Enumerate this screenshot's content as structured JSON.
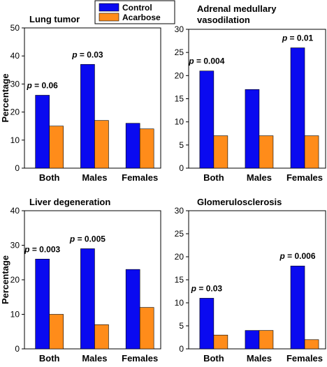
{
  "legend": {
    "entries": [
      {
        "name": "Control",
        "color": "#0a0af0"
      },
      {
        "name": "Acarbose",
        "color": "#ff8c1a"
      }
    ]
  },
  "chart_data": [
    {
      "type": "bar",
      "title": "Lung tumor",
      "ylabel": "Percentage",
      "categories": [
        "Both",
        "Males",
        "Females"
      ],
      "ylim": [
        0,
        50
      ],
      "yticks": [
        0,
        10,
        20,
        30,
        40,
        50
      ],
      "series": [
        {
          "name": "Control",
          "values": [
            26,
            37,
            16
          ]
        },
        {
          "name": "Acarbose",
          "values": [
            15,
            17,
            14
          ]
        }
      ],
      "annotations": [
        "p = 0.06",
        "p = 0.03",
        ""
      ]
    },
    {
      "type": "bar",
      "title": "Adrenal medullary vasodilation",
      "title_lines": [
        "Adrenal medullary",
        "vasodilation"
      ],
      "ylabel": "",
      "categories": [
        "Both",
        "Males",
        "Females"
      ],
      "ylim": [
        0,
        30
      ],
      "yticks": [
        0,
        5,
        10,
        15,
        20,
        25,
        30
      ],
      "series": [
        {
          "name": "Control",
          "values": [
            21,
            17,
            26
          ]
        },
        {
          "name": "Acarbose",
          "values": [
            7,
            7,
            7
          ]
        }
      ],
      "annotations": [
        "p = 0.004",
        "",
        "p = 0.01"
      ]
    },
    {
      "type": "bar",
      "title": "Liver degeneration",
      "ylabel": "Percentage",
      "categories": [
        "Both",
        "Males",
        "Females"
      ],
      "ylim": [
        0,
        40
      ],
      "yticks": [
        0,
        10,
        20,
        30,
        40
      ],
      "series": [
        {
          "name": "Control",
          "values": [
            26,
            29,
            23
          ]
        },
        {
          "name": "Acarbose",
          "values": [
            10,
            7,
            12
          ]
        }
      ],
      "annotations": [
        "p = 0.003",
        "p = 0.005",
        ""
      ]
    },
    {
      "type": "bar",
      "title": "Glomerulosclerosis",
      "ylabel": "",
      "categories": [
        "Both",
        "Males",
        "Females"
      ],
      "ylim": [
        0,
        30
      ],
      "yticks": [
        0,
        5,
        10,
        15,
        20,
        25,
        30
      ],
      "series": [
        {
          "name": "Control",
          "values": [
            11,
            4,
            18
          ]
        },
        {
          "name": "Acarbose",
          "values": [
            3,
            4,
            2
          ]
        }
      ],
      "annotations": [
        "p = 0.03",
        "",
        "p = 0.006"
      ]
    }
  ]
}
